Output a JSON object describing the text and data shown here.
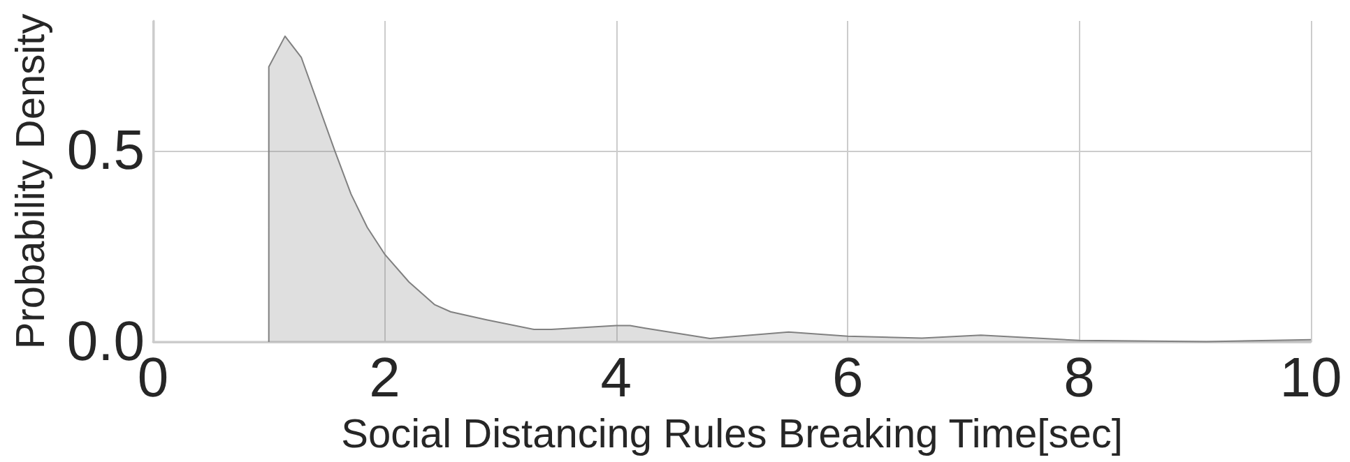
{
  "chart_data": {
    "type": "area",
    "xlabel": "Social Distancing Rules Breaking Time[sec]",
    "ylabel": "Probability Density",
    "series": [
      {
        "color": "#808080",
        "x": [
          1.0,
          1.0,
          1.14,
          1.28,
          1.57,
          1.71,
          1.85,
          2.0,
          2.21,
          2.43,
          2.57,
          2.88,
          3.29,
          3.44,
          4.0,
          4.12,
          4.25,
          4.81,
          5.49,
          6.0,
          6.64,
          7.15,
          8.0,
          9.1,
          10.0
        ],
        "values": [
          0,
          0.72,
          0.8,
          0.745,
          0.5,
          0.387,
          0.3,
          0.23,
          0.157,
          0.098,
          0.079,
          0.058,
          0.033,
          0.033,
          0.043,
          0.043,
          0.036,
          0.009,
          0.026,
          0.015,
          0.01,
          0.018,
          0.004,
          0.001,
          0.006
        ]
      }
    ],
    "xlim": [
      0,
      10
    ],
    "xticks": [
      0,
      2,
      4,
      6,
      8,
      10
    ],
    "ylim": [
      0,
      0.84
    ],
    "yticks": [
      {
        "value": 0,
        "label": "0.0"
      },
      0.5
    ],
    "grid": true
  }
}
